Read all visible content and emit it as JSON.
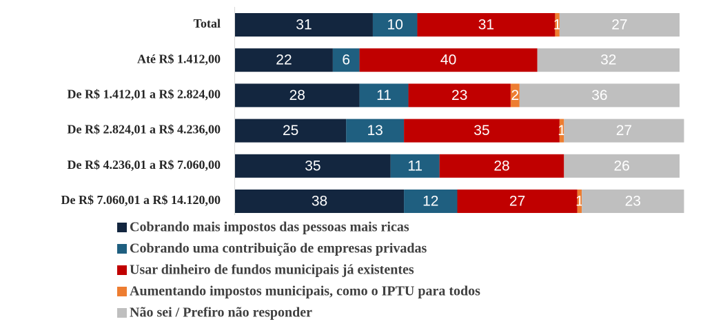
{
  "chart_data": {
    "type": "stacked-bar-horizontal",
    "categories": [
      "Total",
      "Até R$ 1.412,00",
      "De R$ 1.412,01 a R$ 2.824,00",
      "De R$ 2.824,01 a R$ 4.236,00",
      "De R$ 4.236,01 a R$ 7.060,00",
      "De R$ 7.060,01 a R$ 14.120,00"
    ],
    "series": [
      {
        "name": "Cobrando mais impostos das pessoas mais ricas",
        "color": "#13263f",
        "values": [
          31,
          22,
          28,
          25,
          35,
          38
        ]
      },
      {
        "name": "Cobrando uma contribuição de empresas privadas",
        "color": "#1f5f80",
        "values": [
          10,
          6,
          11,
          13,
          11,
          12
        ]
      },
      {
        "name": "Usar dinheiro de fundos municipais já existentes",
        "color": "#c00000",
        "values": [
          31,
          40,
          23,
          35,
          28,
          27
        ]
      },
      {
        "name": "Aumentando impostos municipais, como o IPTU para todos",
        "color": "#ed7d31",
        "values": [
          1,
          null,
          2,
          1,
          null,
          1
        ]
      },
      {
        "name": "Não sei / Prefiro não responder",
        "color": "#bfbfbf",
        "values": [
          27,
          32,
          36,
          27,
          26,
          23
        ]
      }
    ],
    "xlim": [
      0,
      100
    ]
  }
}
